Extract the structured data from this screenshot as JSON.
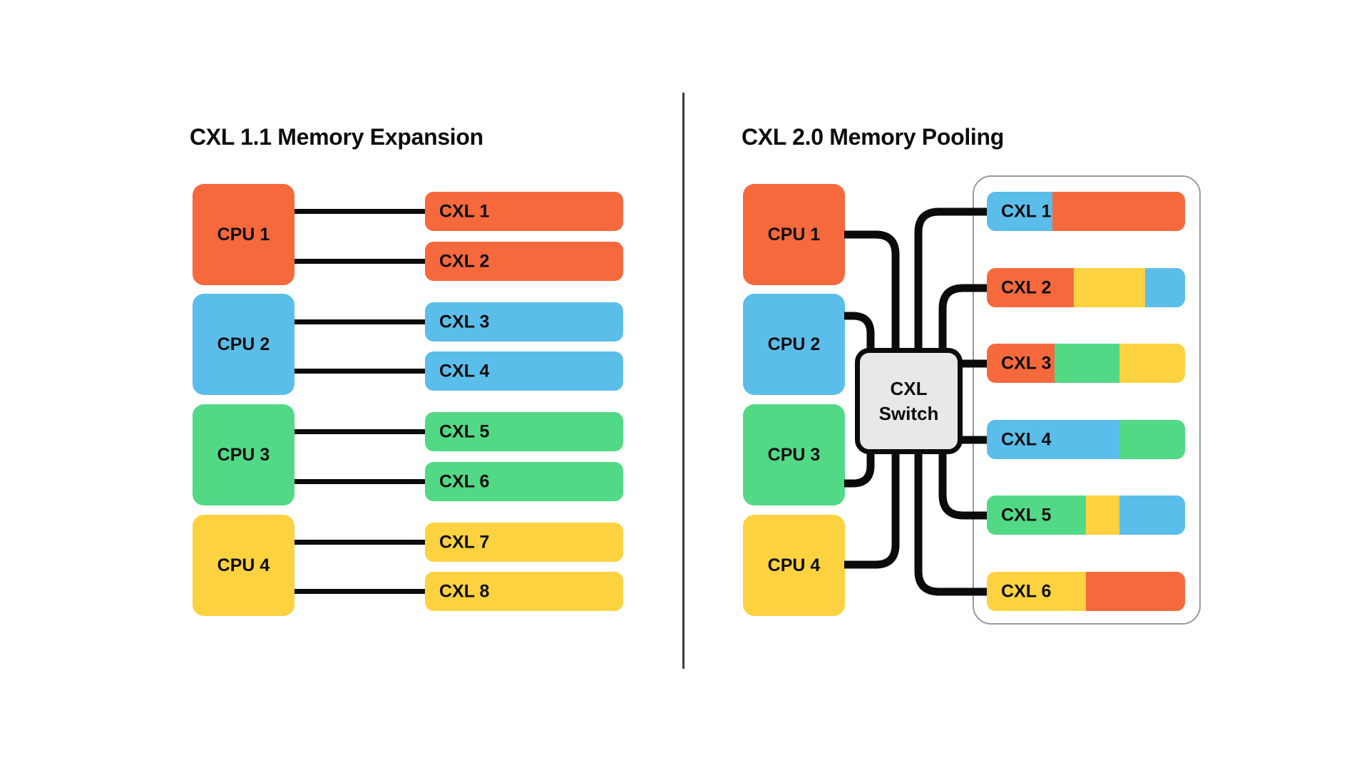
{
  "colors": {
    "orange": "#F6693C",
    "blue": "#5BBEEA",
    "green": "#52D985",
    "yellow": "#FDD240",
    "line": "#0B0B0B",
    "switch_fill": "#E8E8E8",
    "pool_border": "#9B9B9B",
    "divider": "#3D3D3D",
    "text": "#0D0D0D",
    "background": "#FFFFFF"
  },
  "left": {
    "title": "CXL 1.1 Memory Expansion",
    "cpus": [
      {
        "label": "CPU 1",
        "color": "orange"
      },
      {
        "label": "CPU 2",
        "color": "blue"
      },
      {
        "label": "CPU 3",
        "color": "green"
      },
      {
        "label": "CPU 4",
        "color": "yellow"
      }
    ],
    "modules": [
      {
        "label": "CXL 1",
        "color": "orange"
      },
      {
        "label": "CXL 2",
        "color": "orange"
      },
      {
        "label": "CXL 3",
        "color": "blue"
      },
      {
        "label": "CXL 4",
        "color": "blue"
      },
      {
        "label": "CXL 5",
        "color": "green"
      },
      {
        "label": "CXL 6",
        "color": "green"
      },
      {
        "label": "CXL 7",
        "color": "yellow"
      },
      {
        "label": "CXL 8",
        "color": "yellow"
      }
    ]
  },
  "right": {
    "title": "CXL 2.0 Memory Pooling",
    "cpus": [
      {
        "label": "CPU 1",
        "color": "orange"
      },
      {
        "label": "CPU 2",
        "color": "blue"
      },
      {
        "label": "CPU 3",
        "color": "green"
      },
      {
        "label": "CPU 4",
        "color": "yellow"
      }
    ],
    "switch": {
      "line1": "CXL",
      "line2": "Switch"
    },
    "modules": [
      {
        "label": "CXL 1",
        "segments": [
          {
            "color": "blue",
            "pct": 33
          },
          {
            "color": "orange",
            "pct": 67
          }
        ]
      },
      {
        "label": "CXL 2",
        "segments": [
          {
            "color": "orange",
            "pct": 44
          },
          {
            "color": "yellow",
            "pct": 36
          },
          {
            "color": "blue",
            "pct": 20
          }
        ]
      },
      {
        "label": "CXL 3",
        "segments": [
          {
            "color": "orange",
            "pct": 34
          },
          {
            "color": "green",
            "pct": 33
          },
          {
            "color": "yellow",
            "pct": 33
          }
        ]
      },
      {
        "label": "CXL 4",
        "segments": [
          {
            "color": "blue",
            "pct": 67
          },
          {
            "color": "green",
            "pct": 33
          }
        ]
      },
      {
        "label": "CXL 5",
        "segments": [
          {
            "color": "green",
            "pct": 50
          },
          {
            "color": "yellow",
            "pct": 17
          },
          {
            "color": "blue",
            "pct": 33
          }
        ]
      },
      {
        "label": "CXL 6",
        "segments": [
          {
            "color": "yellow",
            "pct": 50
          },
          {
            "color": "orange",
            "pct": 50
          }
        ]
      }
    ]
  }
}
